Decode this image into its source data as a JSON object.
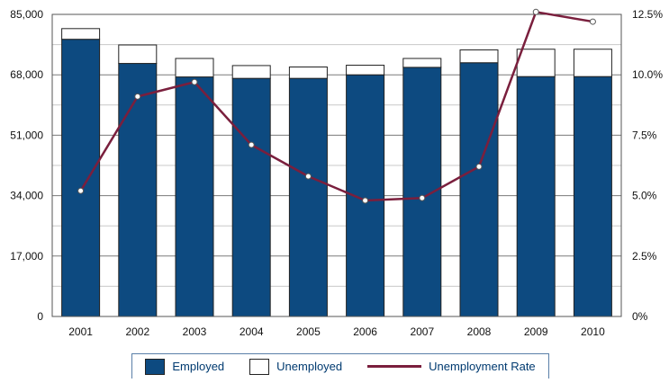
{
  "chart_data": {
    "type": "bar",
    "stacked": true,
    "categories": [
      "2001",
      "2002",
      "2003",
      "2004",
      "2005",
      "2006",
      "2007",
      "2008",
      "2009",
      "2010"
    ],
    "series": [
      {
        "name": "Employed",
        "axis": "left",
        "color": "#0d4a80",
        "values": [
          78000,
          71200,
          67400,
          67000,
          67000,
          68000,
          70100,
          71400,
          67500,
          67500
        ]
      },
      {
        "name": "Unemployed",
        "axis": "left",
        "color": "#ffffff",
        "values": [
          3000,
          5200,
          5200,
          3600,
          3200,
          2700,
          2500,
          3600,
          7700,
          7700
        ]
      },
      {
        "name": "Unemployment Rate",
        "type": "line",
        "axis": "right",
        "color": "#7a1f3d",
        "values": [
          5.2,
          9.1,
          9.7,
          7.1,
          5.8,
          4.8,
          4.9,
          6.2,
          12.6,
          12.2
        ]
      }
    ],
    "y_left": {
      "ylim": [
        0,
        85000
      ],
      "ticks": [
        "0",
        "17,000",
        "34,000",
        "51,000",
        "68,000",
        "85,000"
      ],
      "tick_values": [
        0,
        17000,
        34000,
        51000,
        68000,
        85000
      ]
    },
    "y_right": {
      "ylim": [
        0,
        12.5
      ],
      "ticks": [
        "0%",
        "2.5%",
        "5.0%",
        "7.5%",
        "10.0%",
        "12.5%"
      ],
      "tick_values": [
        0,
        2.5,
        5,
        7.5,
        10,
        12.5
      ]
    },
    "grid": "horizontal",
    "legend": {
      "position": "bottom",
      "labels": [
        "Employed",
        "Unemployed",
        "Unemployment Rate"
      ]
    }
  }
}
